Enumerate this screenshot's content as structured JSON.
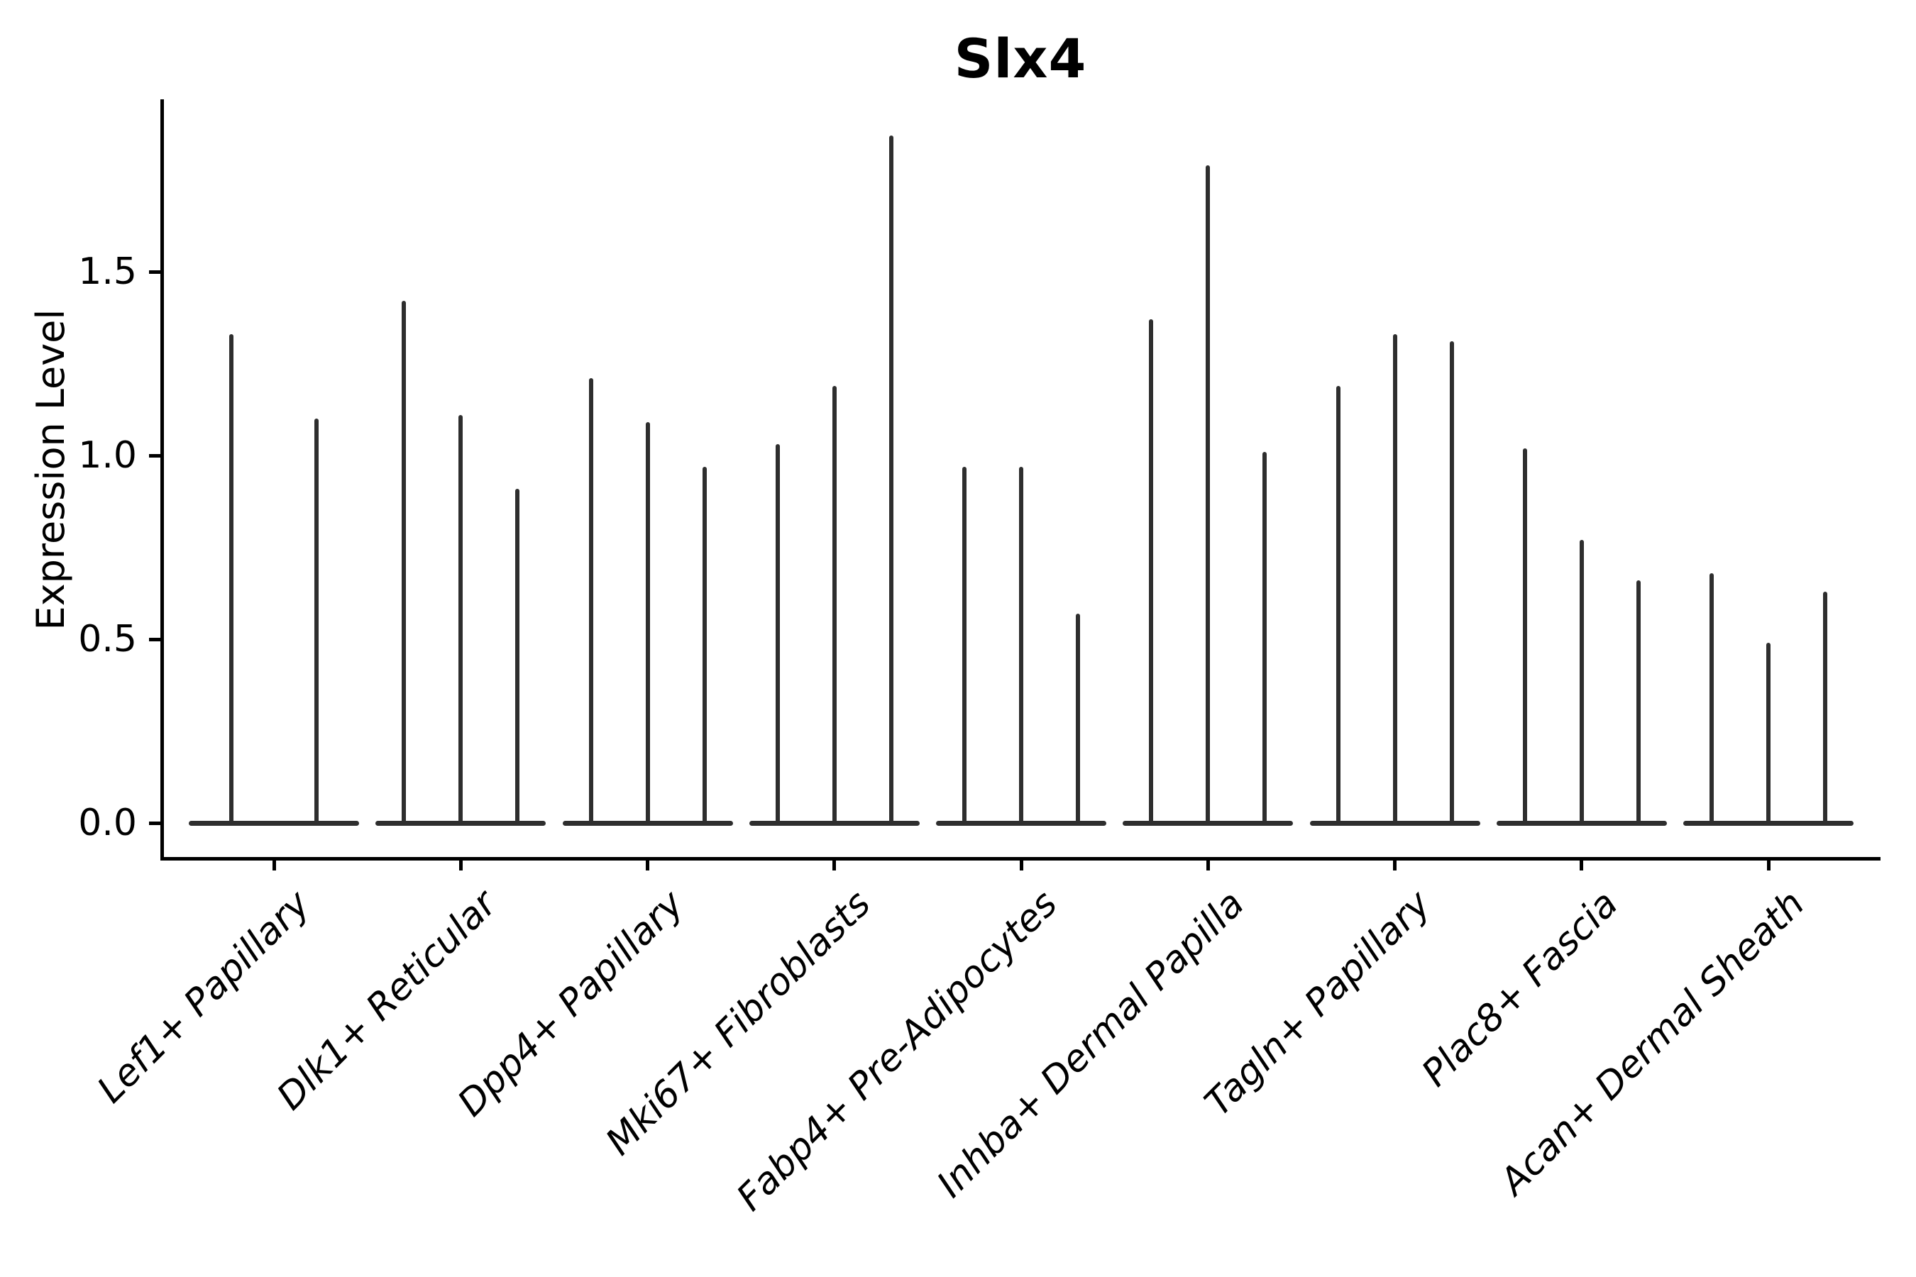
{
  "colors": {
    "background": "#ffffff",
    "axis": "#000000",
    "text": "#000000",
    "violin": "#2e2e2e"
  },
  "chart_data": {
    "type": "violin",
    "title": "Slx4",
    "xlabel": "",
    "ylabel": "Expression Level",
    "ytick_labels": [
      "0.0",
      "0.5",
      "1.0",
      "1.5"
    ],
    "ytick_values": [
      0.0,
      0.5,
      1.0,
      1.5
    ],
    "ylim": [
      -0.09,
      1.97
    ],
    "grid": false,
    "legend": false,
    "baseline_value": 0.0,
    "categories": [
      "Lef1+ Papillary",
      "Dlk1+ Reticular",
      "Dpp4+ Papillary",
      "Mki67+ Fibroblasts",
      "Fabp4+ Pre-Adipocytes",
      "Inhba+ Dermal Papilla",
      "Tagln+ Papillary",
      "Plac8+ Fascia",
      "Acan+ Dermal Sheath"
    ],
    "series": [
      {
        "category": "Lef1+ Papillary",
        "violin_peaks": [
          1.33,
          1.1
        ]
      },
      {
        "category": "Dlk1+ Reticular",
        "violin_peaks": [
          1.42,
          1.11,
          0.91
        ]
      },
      {
        "category": "Dpp4+ Papillary",
        "violin_peaks": [
          1.21,
          1.09,
          0.97
        ]
      },
      {
        "category": "Mki67+ Fibroblasts",
        "violin_peaks": [
          1.03,
          1.19,
          1.87
        ]
      },
      {
        "category": "Fabp4+ Pre-Adipocytes",
        "violin_peaks": [
          0.97,
          0.97,
          0.57
        ]
      },
      {
        "category": "Inhba+ Dermal Papilla",
        "violin_peaks": [
          1.37,
          1.79,
          1.01
        ]
      },
      {
        "category": "Tagln+ Papillary",
        "violin_peaks": [
          1.19,
          1.33,
          1.31
        ]
      },
      {
        "category": "Plac8+ Fascia",
        "violin_peaks": [
          1.02,
          0.77,
          0.66
        ]
      },
      {
        "category": "Acan+ Dermal Sheath",
        "violin_peaks": [
          0.68,
          0.49,
          0.63
        ]
      }
    ]
  }
}
